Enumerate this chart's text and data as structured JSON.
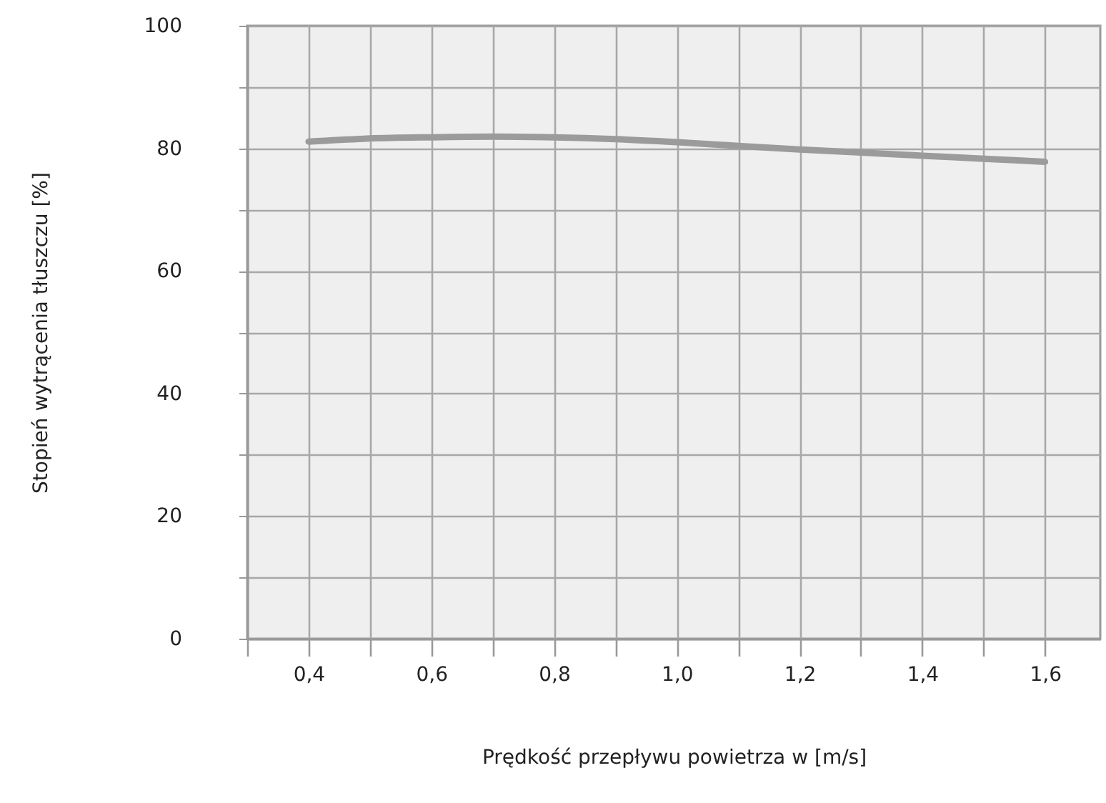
{
  "chart_data": {
    "type": "line",
    "xlabel": "Prędkość przepływu powietrza w [m/s]",
    "ylabel": "Stopień wytrącenia tłuszczu [%]",
    "x": [
      0.4,
      0.5,
      0.6,
      0.7,
      0.8,
      0.9,
      1.0,
      1.1,
      1.2,
      1.3,
      1.4,
      1.5,
      1.6
    ],
    "series": [
      {
        "color": "#9b9b9b",
        "values": [
          81.1,
          81.6,
          81.8,
          81.9,
          81.8,
          81.5,
          81.0,
          80.4,
          79.8,
          79.3,
          78.8,
          78.3,
          77.8
        ]
      }
    ],
    "xlim": [
      0.3,
      1.69
    ],
    "xticks": [
      {
        "value": 0.3,
        "label": null
      },
      {
        "value": 0.4,
        "label": "0,4"
      },
      {
        "value": 0.5,
        "label": null
      },
      {
        "value": 0.6,
        "label": "0,6"
      },
      {
        "value": 0.7,
        "label": null
      },
      {
        "value": 0.8,
        "label": "0,8"
      },
      {
        "value": 0.9,
        "label": null
      },
      {
        "value": 1.0,
        "label": "1,0"
      },
      {
        "value": 1.1,
        "label": null
      },
      {
        "value": 1.2,
        "label": "1,2"
      },
      {
        "value": 1.3,
        "label": null
      },
      {
        "value": 1.4,
        "label": "1,4"
      },
      {
        "value": 1.5,
        "label": null
      },
      {
        "value": 1.6,
        "label": "1,6"
      }
    ],
    "ylim": [
      0,
      100
    ],
    "yticks": [
      0,
      {
        "value": 10,
        "label": null
      },
      20,
      {
        "value": 30,
        "label": null
      },
      40,
      {
        "value": 50,
        "label": null
      },
      60,
      {
        "value": 70,
        "label": null
      },
      80,
      {
        "value": 90,
        "label": null
      },
      100
    ],
    "grid": true,
    "line_style": "solid",
    "marker": "none"
  }
}
